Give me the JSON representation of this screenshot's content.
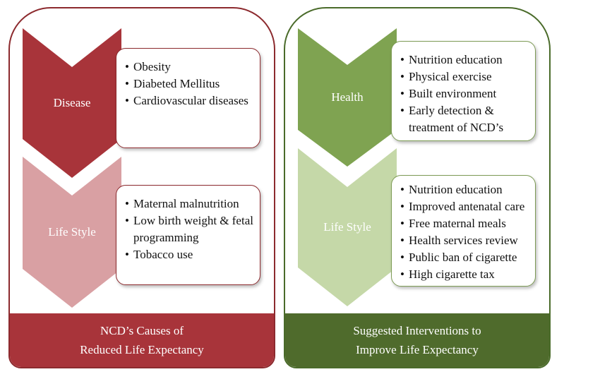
{
  "left_panel": {
    "footer_line1": "NCD’s Causes of",
    "footer_line2": "Reduced Life Expectancy",
    "colors": {
      "border": "#8c2a2e",
      "footer": "#a8343a",
      "chevron_top": "#a8343a",
      "chevron_bottom": "#d9a0a3"
    },
    "sections": [
      {
        "label": "Disease",
        "items": [
          "Obesity",
          "Diabeted Mellitus",
          "Cardiovascular diseases"
        ]
      },
      {
        "label": "Life Style",
        "items": [
          "Maternal malnutrition",
          "Low birth weight & fetal programming",
          "Tobacco use"
        ]
      }
    ]
  },
  "right_panel": {
    "footer_line1": "Suggested Interventions to",
    "footer_line2": "Improve Life Expectancy",
    "colors": {
      "border": "#4a6b2a",
      "footer": "#4f6b2c",
      "chevron_top": "#7fa351",
      "chevron_bottom": "#c5d8a8"
    },
    "sections": [
      {
        "label": "Health",
        "items": [
          "Nutrition education",
          "Physical exercise",
          "Built environment",
          "Early detection & treatment of NCD’s"
        ]
      },
      {
        "label": "Life Style",
        "items": [
          "Nutrition education",
          "Improved antenatal care",
          "Free maternal meals",
          "Health services review",
          "Public ban of cigarette",
          "High cigarette tax"
        ]
      }
    ]
  }
}
